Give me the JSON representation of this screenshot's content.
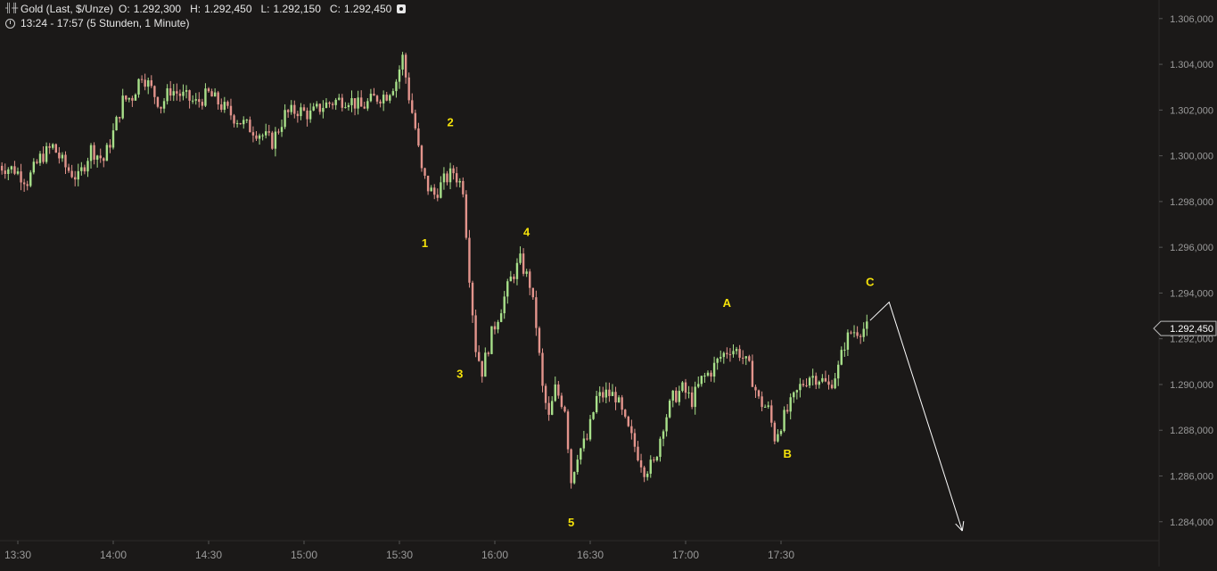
{
  "header": {
    "instrument": "Gold (Last, $/Unze)",
    "open_label": "O:",
    "open": "1.292,300",
    "high_label": "H:",
    "high": "1.292,450",
    "low_label": "L:",
    "low": "1.292,150",
    "close_label": "C:",
    "close": "1.292,450",
    "timeframe": "13:24 - 17:57 (5 Stunden, 1 Minute)",
    "chart_type_icon": "candlestick-icon",
    "options_icon": "settings-circle-icon",
    "clock_icon": "clock-icon"
  },
  "colors": {
    "background": "#1b1918",
    "up": "#a8e08a",
    "down": "#e3948c",
    "wave_label": "#f5e20a",
    "axis_text": "#9a9a9a",
    "arrow": "#ffffff",
    "price_tag_bg": "#1b1918"
  },
  "chart_data": {
    "type": "candlestick",
    "title": "Gold (Last, $/Unze)",
    "y_range": [
      1283000,
      1306500
    ],
    "y_ticks": [
      1284000,
      1286000,
      1288000,
      1290000,
      1292000,
      1294000,
      1296000,
      1298000,
      1300000,
      1302000,
      1304000,
      1306000
    ],
    "y_tick_labels": [
      "1.284,000",
      "1.286,000",
      "1.288,000",
      "1.290,000",
      "1.292,000",
      "1.294,000",
      "1.296,000",
      "1.298,000",
      "1.300,000",
      "1.302,000",
      "1.304,000",
      "1.306,000"
    ],
    "x_ticks": [
      "13:30",
      "14:00",
      "14:30",
      "15:00",
      "15:30",
      "16:00",
      "16:30",
      "17:00",
      "17:30"
    ],
    "last_price": 1292450,
    "last_price_label": "1.292,450",
    "price_path": [
      [
        "13:24",
        1299600
      ],
      [
        "13:30",
        1299400
      ],
      [
        "13:34",
        1298900
      ],
      [
        "13:38",
        1299900
      ],
      [
        "13:42",
        1300400
      ],
      [
        "13:46",
        1299500
      ],
      [
        "13:50",
        1299000
      ],
      [
        "13:54",
        1300300
      ],
      [
        "13:58",
        1299800
      ],
      [
        "14:01",
        1301000
      ],
      [
        "14:04",
        1302400
      ],
      [
        "14:07",
        1302600
      ],
      [
        "14:10",
        1303600
      ],
      [
        "14:13",
        1302900
      ],
      [
        "14:16",
        1302200
      ],
      [
        "14:19",
        1302900
      ],
      [
        "14:23",
        1302600
      ],
      [
        "14:27",
        1302300
      ],
      [
        "14:31",
        1302700
      ],
      [
        "14:35",
        1302200
      ],
      [
        "14:39",
        1301700
      ],
      [
        "14:43",
        1301300
      ],
      [
        "14:47",
        1301000
      ],
      [
        "14:51",
        1300600
      ],
      [
        "14:55",
        1301800
      ],
      [
        "14:59",
        1302000
      ],
      [
        "15:03",
        1301800
      ],
      [
        "15:07",
        1302200
      ],
      [
        "15:11",
        1302400
      ],
      [
        "15:15",
        1302500
      ],
      [
        "15:19",
        1302100
      ],
      [
        "15:23",
        1302500
      ],
      [
        "15:27",
        1302700
      ],
      [
        "15:30",
        1303300
      ],
      [
        "15:32",
        1304300
      ],
      [
        "15:34",
        1302600
      ],
      [
        "15:36",
        1301200
      ],
      [
        "15:38",
        1299300
      ],
      [
        "15:40",
        1298600
      ],
      [
        "15:42",
        1298300
      ],
      [
        "15:45",
        1298900
      ],
      [
        "15:48",
        1299300
      ],
      [
        "15:51",
        1298600
      ],
      [
        "15:53",
        1294800
      ],
      [
        "15:55",
        1291600
      ],
      [
        "15:57",
        1290600
      ],
      [
        "16:00",
        1292200
      ],
      [
        "16:03",
        1293400
      ],
      [
        "16:06",
        1294600
      ],
      [
        "16:09",
        1295400
      ],
      [
        "16:12",
        1294400
      ],
      [
        "16:14",
        1292600
      ],
      [
        "16:16",
        1289800
      ],
      [
        "16:18",
        1288500
      ],
      [
        "16:20",
        1289800
      ],
      [
        "16:23",
        1289000
      ],
      [
        "16:25",
        1285800
      ],
      [
        "16:27",
        1287000
      ],
      [
        "16:30",
        1287600
      ],
      [
        "16:33",
        1289400
      ],
      [
        "16:36",
        1289600
      ],
      [
        "16:39",
        1289500
      ],
      [
        "16:42",
        1288300
      ],
      [
        "16:45",
        1287300
      ],
      [
        "16:48",
        1286300
      ],
      [
        "16:51",
        1286500
      ],
      [
        "16:54",
        1288300
      ],
      [
        "16:57",
        1289400
      ],
      [
        "17:00",
        1289800
      ],
      [
        "17:03",
        1289300
      ],
      [
        "17:06",
        1290200
      ],
      [
        "17:09",
        1290600
      ],
      [
        "17:12",
        1291200
      ],
      [
        "17:15",
        1291600
      ],
      [
        "17:18",
        1291400
      ],
      [
        "17:21",
        1290700
      ],
      [
        "17:24",
        1289300
      ],
      [
        "17:27",
        1288900
      ],
      [
        "17:29",
        1287700
      ],
      [
        "17:31",
        1288300
      ],
      [
        "17:34",
        1289100
      ],
      [
        "17:37",
        1289900
      ],
      [
        "17:40",
        1290400
      ],
      [
        "17:43",
        1290300
      ],
      [
        "17:46",
        1289900
      ],
      [
        "17:49",
        1290700
      ],
      [
        "17:51",
        1291800
      ],
      [
        "17:53",
        1292300
      ],
      [
        "17:57",
        1292450
      ]
    ],
    "wave_labels": [
      {
        "text": "1",
        "x": "15:38",
        "y": 1296000
      },
      {
        "text": "2",
        "x": "15:46",
        "y": 1301300
      },
      {
        "text": "3",
        "x": "15:49",
        "y": 1290300
      },
      {
        "text": "4",
        "x": "16:10",
        "y": 1296500
      },
      {
        "text": "5",
        "x": "16:24",
        "y": 1283800
      },
      {
        "text": "A",
        "x": "17:13",
        "y": 1293400
      },
      {
        "text": "B",
        "x": "17:32",
        "y": 1286800
      },
      {
        "text": "C",
        "x": "17:58",
        "y": 1294300
      }
    ],
    "projection": {
      "points": [
        [
          "17:58",
          1292800
        ],
        [
          "18:04",
          1293600
        ],
        [
          "18:27",
          1283600
        ]
      ]
    }
  }
}
